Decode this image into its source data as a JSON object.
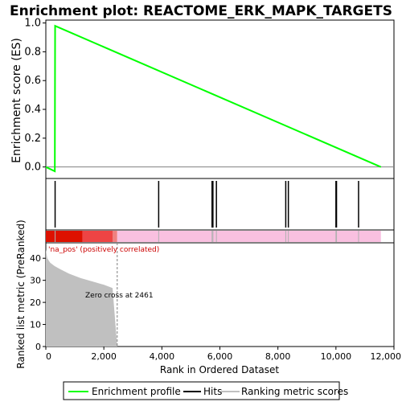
{
  "chart_data": {
    "type": "line",
    "title": "Enrichment plot: REACTOME_ERK_MAPK_TARGETS",
    "ylabel": "Enrichment score (ES)",
    "ylabel2": "Ranked list metric (PreRanked)",
    "xlabel": "Rank in Ordered Dataset",
    "xlim": [
      0,
      12000
    ],
    "ylim": [
      -0.08,
      1.02
    ],
    "ylim2": [
      0,
      47
    ],
    "x_ticks": [
      0,
      2000,
      4000,
      6000,
      8000,
      10000,
      12000
    ],
    "x_tick_labels": [
      "0",
      "2,000",
      "4,000",
      "6,000",
      "8,000",
      "10,000",
      "12,000"
    ],
    "y_ticks": [
      0.0,
      0.2,
      0.4,
      0.6,
      0.8,
      1.0
    ],
    "y_tick_labels": [
      "0.0",
      "0.2",
      "0.4",
      "0.6",
      "0.8",
      "1.0"
    ],
    "y2_ticks": [
      0,
      10,
      20,
      30,
      40
    ],
    "y2_tick_labels": [
      "0",
      "10",
      "20",
      "30",
      "40"
    ],
    "enrichment_profile": {
      "name": "Enrichment profile",
      "color": "#00ff00",
      "x": [
        0,
        310,
        320,
        11550
      ],
      "y": [
        0.0,
        -0.03,
        0.98,
        0.0
      ]
    },
    "hits": {
      "name": "Hits",
      "color": "#000000",
      "x": [
        320,
        3890,
        5730,
        5760,
        5880,
        8270,
        8360,
        10000,
        10020,
        10780
      ]
    },
    "ranking_metric": {
      "name": "Ranking metric scores",
      "color": "#c0c0c0",
      "x": [
        0,
        50,
        150,
        300,
        500,
        800,
        1200,
        1600,
        2000,
        2300,
        2461
      ],
      "y": [
        44,
        40,
        38,
        36.5,
        35,
        33,
        31,
        29.5,
        28,
        26.5,
        0
      ]
    },
    "colorbar_segments": [
      {
        "from": 0,
        "to": 1260,
        "color": "#dd1100"
      },
      {
        "from": 1260,
        "to": 2300,
        "color": "#ee4444"
      },
      {
        "from": 2300,
        "to": 2461,
        "color": "#f08080"
      },
      {
        "from": 2461,
        "to": 11550,
        "color": "#f9c0e0"
      }
    ],
    "annotations": {
      "positive": "'na_pos' (positively correlated)",
      "zero_cross": "Zero cross at 2461",
      "zero_cross_x": 2461
    },
    "legend": {
      "placement": "bottom",
      "items": [
        {
          "label": "Enrichment profile",
          "color": "#00ff00"
        },
        {
          "label": "Hits",
          "color": "#000000"
        },
        {
          "label": "Ranking metric scores",
          "color": "#c0c0c0"
        }
      ]
    }
  }
}
